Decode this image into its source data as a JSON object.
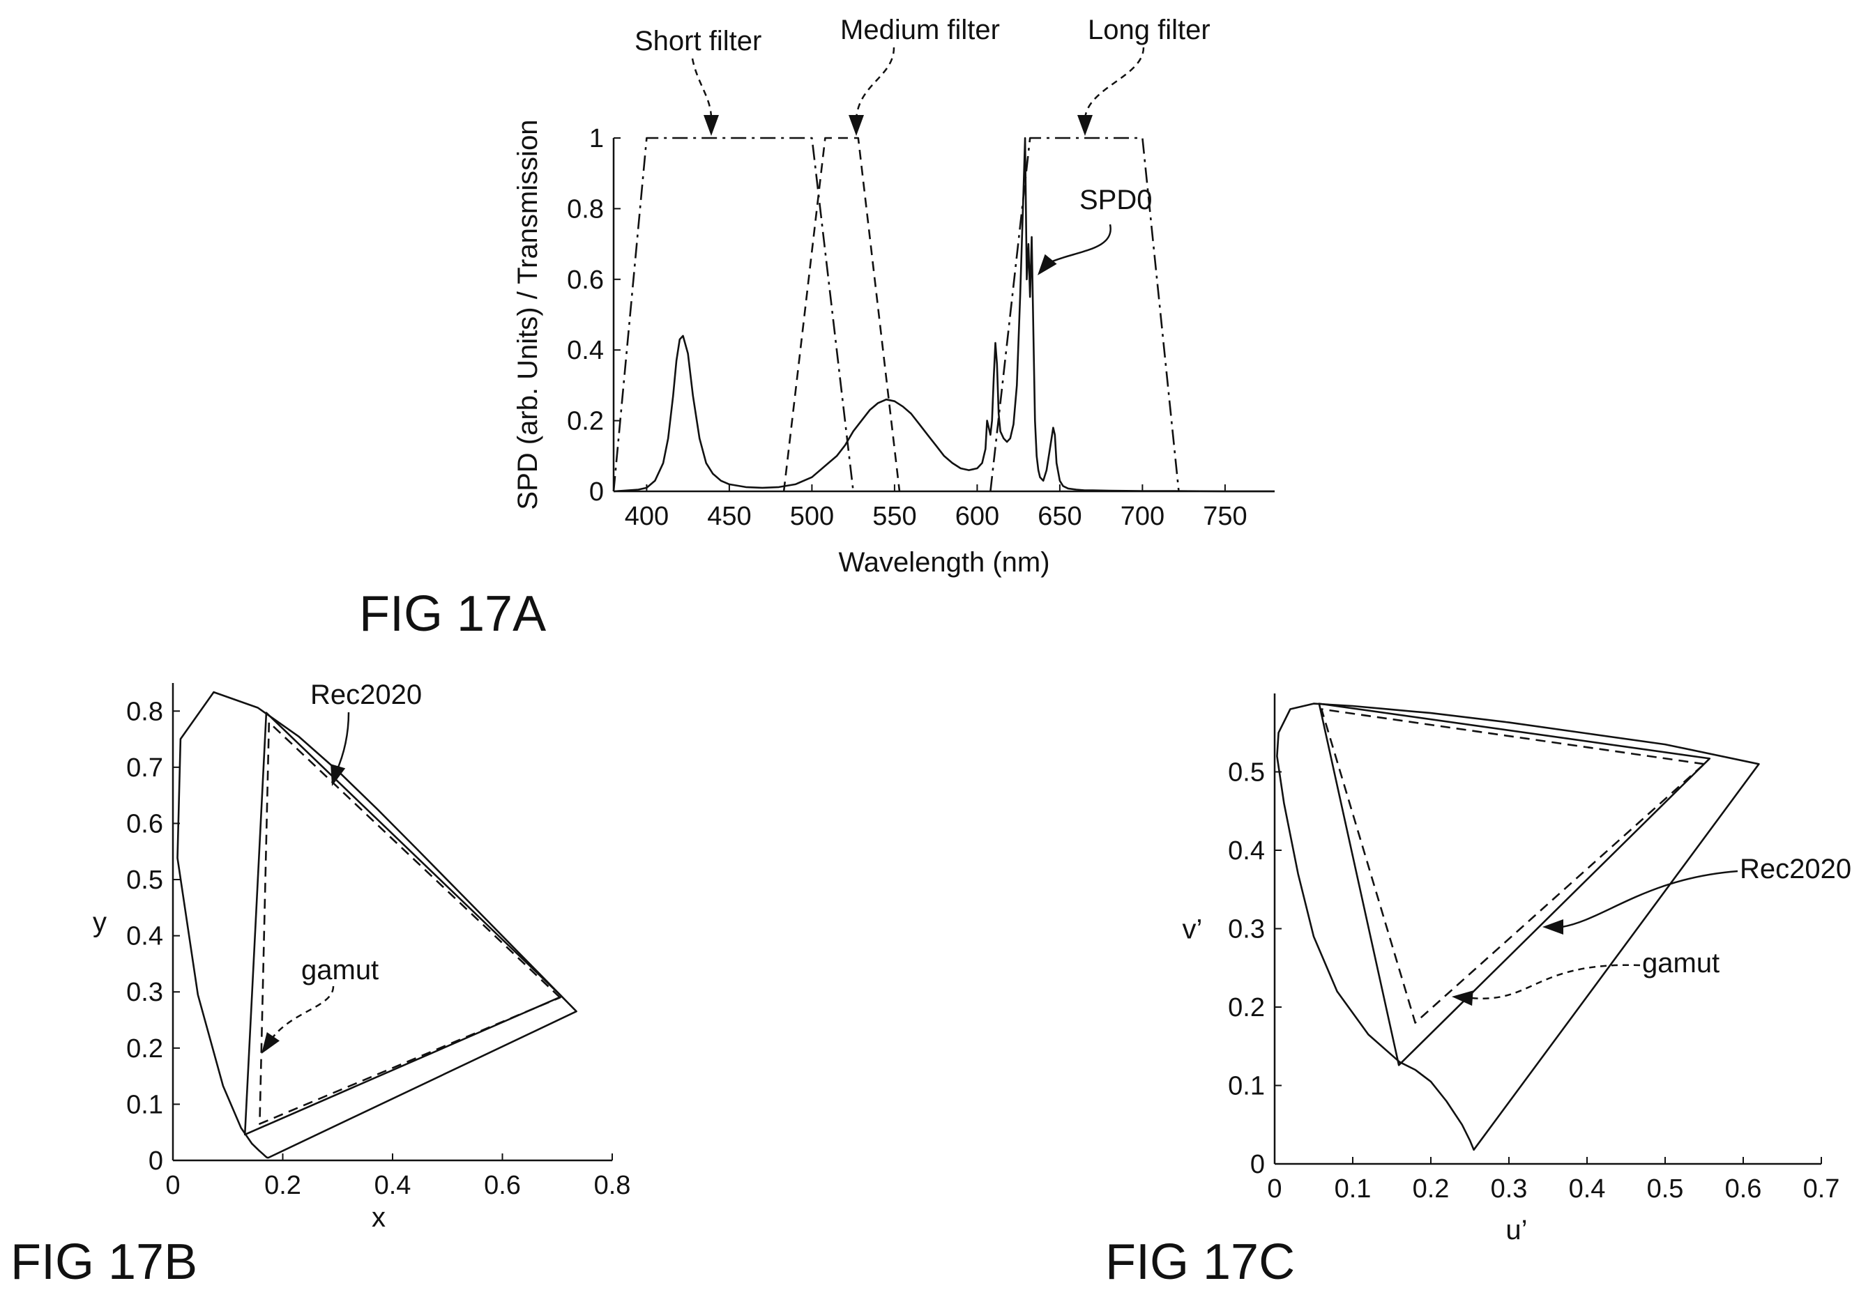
{
  "figures": {
    "a": {
      "label": "FIG 17A"
    },
    "b": {
      "label": "FIG 17B"
    },
    "c": {
      "label": "FIG 17C"
    }
  },
  "chart_data": [
    {
      "id": "17A",
      "type": "line",
      "title": "",
      "xlabel": "Wavelength (nm)",
      "ylabel": "SPD (arb. Units) / Transmission",
      "xlim": [
        380,
        780
      ],
      "ylim": [
        0,
        1
      ],
      "x_ticks": [
        400,
        450,
        500,
        550,
        600,
        650,
        700,
        750
      ],
      "y_ticks": [
        0,
        0.2,
        0.4,
        0.6,
        0.8,
        1
      ],
      "y_tick_labels": [
        "0",
        "0.2",
        "0.4",
        "0.6",
        "0.8",
        "1"
      ],
      "grid": false,
      "legend": "none",
      "annotations": [
        {
          "text": "Short filter",
          "target": "Short filter"
        },
        {
          "text": "Medium filter",
          "target": "Medium filter"
        },
        {
          "text": "Long filter",
          "target": "Long filter"
        },
        {
          "text": "SPD0",
          "target": "SPD0"
        }
      ],
      "series": [
        {
          "name": "Short filter",
          "style": "dashdot",
          "x": [
            380,
            400,
            500,
            525
          ],
          "y": [
            0,
            1,
            1,
            0
          ]
        },
        {
          "name": "Medium filter",
          "style": "dashed",
          "x": [
            483,
            508,
            528,
            553
          ],
          "y": [
            0,
            1,
            1,
            0
          ]
        },
        {
          "name": "Long filter",
          "style": "dashdot",
          "x": [
            608,
            632,
            700,
            722
          ],
          "y": [
            0,
            1,
            1,
            0
          ]
        },
        {
          "name": "SPD0",
          "style": "solid",
          "x": [
            380,
            395,
            400,
            405,
            410,
            413,
            416,
            418,
            420,
            422,
            425,
            428,
            432,
            436,
            440,
            445,
            450,
            460,
            470,
            480,
            490,
            500,
            510,
            515,
            520,
            525,
            530,
            535,
            540,
            545,
            550,
            555,
            560,
            565,
            570,
            575,
            580,
            585,
            590,
            595,
            600,
            603,
            605,
            606,
            607,
            608,
            609,
            610,
            611,
            612,
            613,
            614,
            616,
            618,
            620,
            622,
            624,
            626,
            628,
            629,
            630,
            631,
            632,
            633,
            634,
            635,
            636,
            637,
            638,
            640,
            642,
            644,
            646,
            647,
            648,
            650,
            652,
            655,
            660,
            665,
            670,
            680,
            700,
            720,
            750,
            780
          ],
          "y": [
            0,
            0.005,
            0.01,
            0.03,
            0.08,
            0.15,
            0.27,
            0.37,
            0.43,
            0.44,
            0.39,
            0.27,
            0.15,
            0.08,
            0.05,
            0.03,
            0.02,
            0.012,
            0.01,
            0.012,
            0.02,
            0.04,
            0.08,
            0.1,
            0.13,
            0.17,
            0.2,
            0.23,
            0.25,
            0.26,
            0.255,
            0.24,
            0.22,
            0.19,
            0.16,
            0.13,
            0.1,
            0.08,
            0.065,
            0.06,
            0.065,
            0.08,
            0.12,
            0.2,
            0.18,
            0.16,
            0.2,
            0.32,
            0.42,
            0.36,
            0.22,
            0.17,
            0.15,
            0.14,
            0.15,
            0.19,
            0.3,
            0.55,
            0.85,
            1.0,
            0.6,
            0.7,
            0.55,
            0.72,
            0.45,
            0.2,
            0.1,
            0.06,
            0.04,
            0.03,
            0.06,
            0.12,
            0.18,
            0.16,
            0.08,
            0.03,
            0.015,
            0.008,
            0.005,
            0.003,
            0.003,
            0.002,
            0.001,
            0.001,
            0,
            0
          ]
        }
      ]
    },
    {
      "id": "17B",
      "type": "line",
      "title": "",
      "xlabel": "x",
      "ylabel": "y",
      "xlim": [
        0,
        0.8
      ],
      "ylim": [
        0,
        0.85
      ],
      "x_ticks": [
        0,
        0.2,
        0.4,
        0.6,
        0.8
      ],
      "x_tick_labels": [
        "0",
        "0.2",
        "0.4",
        "0.6",
        "0.8"
      ],
      "y_ticks": [
        0,
        0.1,
        0.2,
        0.3,
        0.4,
        0.5,
        0.6,
        0.7,
        0.8
      ],
      "y_tick_labels": [
        "0",
        "0.1",
        "0.2",
        "0.3",
        "0.4",
        "0.5",
        "0.6",
        "0.7",
        "0.8"
      ],
      "grid": false,
      "legend": "none",
      "annotations": [
        {
          "text": "Rec2020",
          "target": "Rec2020"
        },
        {
          "text": "gamut",
          "target": "gamut"
        }
      ],
      "series": [
        {
          "name": "locus",
          "style": "solid",
          "closed": true,
          "x": [
            0.1741,
            0.1733,
            0.1726,
            0.1714,
            0.1689,
            0.1644,
            0.1566,
            0.144,
            0.1241,
            0.0913,
            0.0454,
            0.0082,
            0.0139,
            0.0743,
            0.1547,
            0.2296,
            0.3016,
            0.3731,
            0.4441,
            0.5125,
            0.5752,
            0.627,
            0.6658,
            0.6915,
            0.7079,
            0.7175,
            0.7347
          ],
          "y": [
            0.005,
            0.0048,
            0.0048,
            0.0051,
            0.0069,
            0.0109,
            0.0177,
            0.0297,
            0.0578,
            0.1327,
            0.295,
            0.5384,
            0.7502,
            0.8338,
            0.8059,
            0.7543,
            0.6923,
            0.6245,
            0.5547,
            0.4866,
            0.4242,
            0.3725,
            0.334,
            0.3083,
            0.292,
            0.2825,
            0.2653
          ]
        },
        {
          "name": "Rec2020",
          "style": "solid",
          "closed": true,
          "x": [
            0.708,
            0.17,
            0.131
          ],
          "y": [
            0.292,
            0.797,
            0.046
          ]
        },
        {
          "name": "gamut",
          "style": "dashed",
          "closed": true,
          "x": [
            0.705,
            0.175,
            0.158
          ],
          "y": [
            0.29,
            0.78,
            0.065
          ]
        }
      ]
    },
    {
      "id": "17C",
      "type": "line",
      "title": "",
      "xlabel": "u’",
      "ylabel": "v’",
      "xlim": [
        0,
        0.7
      ],
      "ylim": [
        0,
        0.6
      ],
      "x_ticks": [
        0,
        0.1,
        0.2,
        0.3,
        0.4,
        0.5,
        0.6,
        0.7
      ],
      "x_tick_labels": [
        "0",
        "0.1",
        "0.2",
        "0.3",
        "0.4",
        "0.5",
        "0.6",
        "0.7"
      ],
      "y_ticks": [
        0,
        0.1,
        0.2,
        0.3,
        0.4,
        0.5
      ],
      "y_tick_labels": [
        "0",
        "0.1",
        "0.2",
        "0.3",
        "0.4",
        "0.5"
      ],
      "grid": false,
      "legend": "none",
      "annotations": [
        {
          "text": "Rec2020",
          "target": "Rec2020"
        },
        {
          "text": "gamut",
          "target": "gamut"
        }
      ],
      "series": [
        {
          "name": "locus",
          "style": "solid",
          "closed": true,
          "x": [
            0.255,
            0.25,
            0.24,
            0.22,
            0.2,
            0.18,
            0.16,
            0.12,
            0.08,
            0.05,
            0.03,
            0.012,
            0.003,
            0.005,
            0.02,
            0.05,
            0.1,
            0.2,
            0.3,
            0.4,
            0.5,
            0.62
          ],
          "y": [
            0.018,
            0.03,
            0.05,
            0.08,
            0.105,
            0.12,
            0.13,
            0.165,
            0.22,
            0.29,
            0.37,
            0.46,
            0.52,
            0.55,
            0.58,
            0.587,
            0.584,
            0.575,
            0.563,
            0.549,
            0.535,
            0.51
          ]
        },
        {
          "name": "Rec2020",
          "style": "solid",
          "closed": true,
          "x": [
            0.557,
            0.057,
            0.159
          ],
          "y": [
            0.517,
            0.587,
            0.126
          ]
        },
        {
          "name": "gamut",
          "style": "dashed",
          "closed": true,
          "x": [
            0.55,
            0.06,
            0.18
          ],
          "y": [
            0.51,
            0.58,
            0.18
          ]
        }
      ]
    }
  ]
}
